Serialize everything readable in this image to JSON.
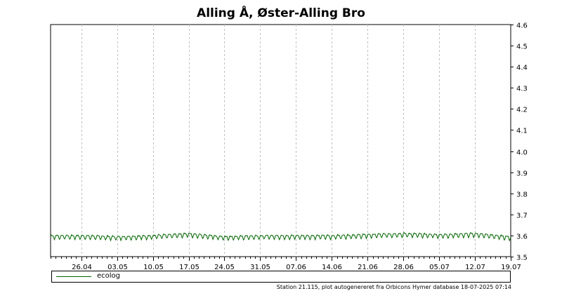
{
  "chart_data": {
    "type": "line",
    "title": "Alling Å, Øster-Alling Bro",
    "xlabel": "",
    "ylabel": "",
    "x_start": "2025-04-20",
    "x_end": "2025-07-19",
    "x_ticks": [
      "26.04",
      "03.05",
      "10.05",
      "17.05",
      "24.05",
      "31.05",
      "07.06",
      "14.06",
      "21.06",
      "28.06",
      "05.07",
      "12.07",
      "19.07"
    ],
    "ylim": [
      3.5,
      4.6
    ],
    "y_ticks": [
      "3.5",
      "3.6",
      "3.7",
      "3.8",
      "3.9",
      "4.0",
      "4.1",
      "4.2",
      "4.3",
      "4.4",
      "4.5",
      "4.6"
    ],
    "y_axis_side": "right",
    "grid": "vertical dashed at date ticks",
    "series": [
      {
        "name": "ecolog",
        "color": "#006400",
        "x": [
          "2025-04-20",
          "2025-04-26",
          "2025-05-03",
          "2025-05-10",
          "2025-05-17",
          "2025-05-24",
          "2025-05-31",
          "2025-06-07",
          "2025-06-14",
          "2025-06-21",
          "2025-06-28",
          "2025-07-05",
          "2025-07-12",
          "2025-07-19"
        ],
        "values": [
          3.595,
          3.595,
          3.59,
          3.595,
          3.605,
          3.59,
          3.595,
          3.595,
          3.595,
          3.6,
          3.605,
          3.6,
          3.605,
          3.59
        ]
      }
    ]
  },
  "legend": {
    "label": "ecolog"
  },
  "footer": "Station 21.115, plot autogenereret fra Orbicons Hymer database 18-07-2025 07:14"
}
